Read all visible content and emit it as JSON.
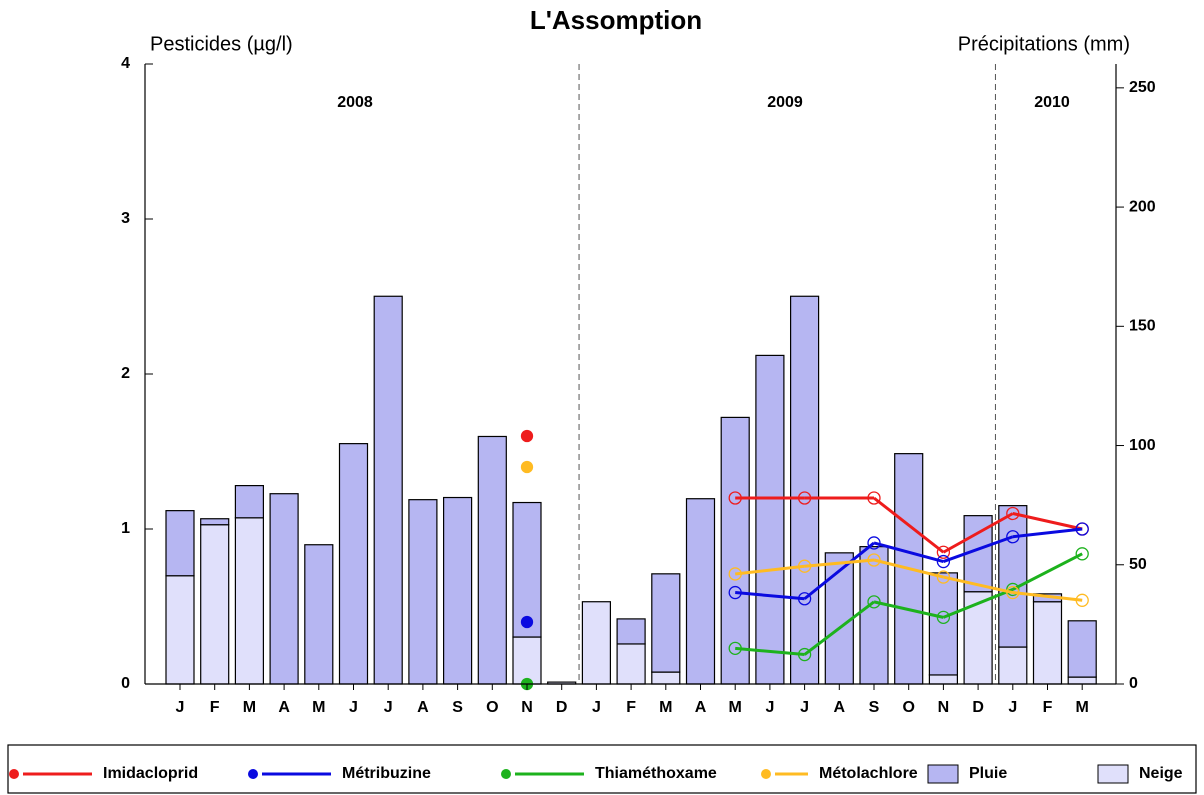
{
  "chart_data": {
    "type": "combo",
    "title": "L'Assomption",
    "ylabel": "Pesticides (µg/l)",
    "y2label": "Précipitations (mm)",
    "years": [
      "2008",
      "2009",
      "2010"
    ],
    "categories": [
      "J",
      "F",
      "M",
      "A",
      "M",
      "J",
      "J",
      "A",
      "S",
      "O",
      "N",
      "D",
      "J",
      "F",
      "M",
      "A",
      "M",
      "J",
      "J",
      "A",
      "S",
      "O",
      "N",
      "D",
      "J",
      "F",
      "M"
    ],
    "ylim": [
      0,
      4
    ],
    "yticks": [
      0,
      1,
      2,
      3,
      4
    ],
    "y2lim": [
      0,
      260
    ],
    "y2ticks": [
      0,
      50,
      100,
      150,
      200,
      250
    ],
    "series": [
      {
        "name": "Imidacloprid",
        "type": "line",
        "color": "#ee1c1c",
        "values": [
          null,
          null,
          null,
          null,
          null,
          null,
          null,
          null,
          null,
          null,
          1.6,
          null,
          null,
          null,
          null,
          null,
          1.2,
          null,
          1.2,
          null,
          1.2,
          null,
          0.85,
          null,
          1.1,
          null,
          1.0
        ]
      },
      {
        "name": "Métribuzine",
        "type": "line",
        "color": "#0a0ae0",
        "values": [
          null,
          null,
          null,
          null,
          null,
          null,
          null,
          null,
          null,
          null,
          0.4,
          null,
          null,
          null,
          null,
          null,
          0.59,
          null,
          0.55,
          null,
          0.91,
          null,
          0.79,
          null,
          0.95,
          null,
          1.0
        ]
      },
      {
        "name": "Thiaméthoxame",
        "type": "line",
        "color": "#1db21d",
        "values": [
          null,
          null,
          null,
          null,
          null,
          null,
          null,
          null,
          null,
          null,
          0,
          null,
          null,
          null,
          null,
          null,
          0.23,
          null,
          0.19,
          null,
          0.53,
          null,
          0.43,
          null,
          0.61,
          null,
          0.84
        ]
      },
      {
        "name": "Métolachlore",
        "type": "line",
        "color": "#ffbb22",
        "values": [
          null,
          null,
          null,
          null,
          null,
          null,
          null,
          null,
          null,
          null,
          1.4,
          null,
          null,
          null,
          null,
          null,
          0.71,
          null,
          0.76,
          null,
          0.8,
          null,
          0.69,
          null,
          0.59,
          null,
          0.54
        ]
      },
      {
        "name": "Pluie",
        "type": "bar",
        "axis": "y2",
        "color": "#b6b6f2",
        "values": [
          27.3,
          2.5,
          13.5,
          79.8,
          58.4,
          100.8,
          162.6,
          77.3,
          78.2,
          103.8,
          56.4,
          0,
          0,
          10.5,
          41.2,
          77.7,
          111.8,
          137.8,
          162.6,
          55.0,
          57.6,
          96.6,
          42.8,
          31.9,
          59.3,
          3.3,
          23.6
        ]
      },
      {
        "name": "Neige",
        "type": "bar",
        "axis": "y2",
        "color": "#e0e0fb",
        "values": [
          45.4,
          66.8,
          69.7,
          0,
          0,
          0,
          0,
          0,
          0,
          0,
          19.7,
          0.8,
          34.5,
          16.8,
          5.0,
          0,
          0,
          0,
          0,
          0,
          0,
          0,
          3.8,
          38.7,
          15.5,
          34.5,
          2.9
        ]
      }
    ]
  }
}
